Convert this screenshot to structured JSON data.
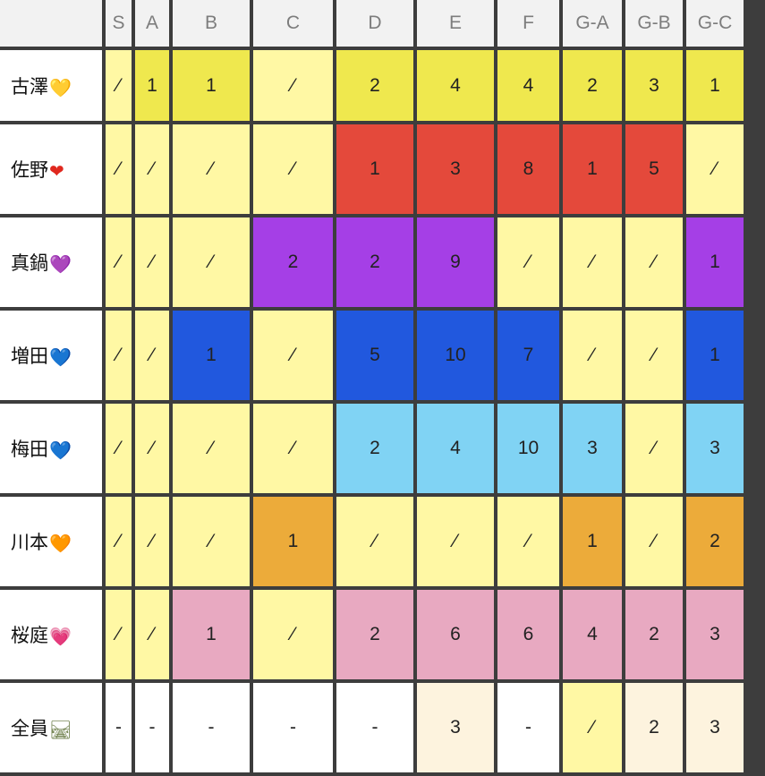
{
  "headers": [
    "S",
    "A",
    "B",
    "C",
    "D",
    "E",
    "F",
    "G-A",
    "G-B",
    "G-C"
  ],
  "rows": [
    {
      "name": "古澤",
      "icon": "yellow-heart-icon",
      "glyph": "💛",
      "glyph_color": "#f5c518",
      "cells": [
        {
          "v": "⁄",
          "c": "pale"
        },
        {
          "v": "1",
          "c": "yellow"
        },
        {
          "v": "1",
          "c": "yellow"
        },
        {
          "v": "⁄",
          "c": "pale"
        },
        {
          "v": "2",
          "c": "yellow"
        },
        {
          "v": "4",
          "c": "yellow"
        },
        {
          "v": "4",
          "c": "yellow"
        },
        {
          "v": "2",
          "c": "yellow"
        },
        {
          "v": "3",
          "c": "yellow"
        },
        {
          "v": "1",
          "c": "yellow"
        }
      ]
    },
    {
      "name": "佐野",
      "icon": "red-heart-icon",
      "glyph": "❤",
      "glyph_color": "#e0281e",
      "cells": [
        {
          "v": "⁄",
          "c": "pale"
        },
        {
          "v": "⁄",
          "c": "pale"
        },
        {
          "v": "⁄",
          "c": "pale"
        },
        {
          "v": "⁄",
          "c": "pale"
        },
        {
          "v": "1",
          "c": "red"
        },
        {
          "v": "3",
          "c": "red"
        },
        {
          "v": "8",
          "c": "red"
        },
        {
          "v": "1",
          "c": "red"
        },
        {
          "v": "5",
          "c": "red"
        },
        {
          "v": "⁄",
          "c": "pale"
        }
      ]
    },
    {
      "name": "真鍋",
      "icon": "purple-heart-icon",
      "glyph": "💜",
      "glyph_color": "#a33be0",
      "cells": [
        {
          "v": "⁄",
          "c": "pale"
        },
        {
          "v": "⁄",
          "c": "pale"
        },
        {
          "v": "⁄",
          "c": "pale"
        },
        {
          "v": "2",
          "c": "purple"
        },
        {
          "v": "2",
          "c": "purple"
        },
        {
          "v": "9",
          "c": "purple"
        },
        {
          "v": "⁄",
          "c": "pale"
        },
        {
          "v": "⁄",
          "c": "pale"
        },
        {
          "v": "⁄",
          "c": "pale"
        },
        {
          "v": "1",
          "c": "purple"
        }
      ]
    },
    {
      "name": "増田",
      "icon": "blue-heart-icon",
      "glyph": "💙",
      "glyph_color": "#2a6ee8",
      "cells": [
        {
          "v": "⁄",
          "c": "pale"
        },
        {
          "v": "⁄",
          "c": "pale"
        },
        {
          "v": "1",
          "c": "blue"
        },
        {
          "v": "⁄",
          "c": "pale"
        },
        {
          "v": "5",
          "c": "blue"
        },
        {
          "v": "10",
          "c": "blue"
        },
        {
          "v": "7",
          "c": "blue"
        },
        {
          "v": "⁄",
          "c": "pale"
        },
        {
          "v": "⁄",
          "c": "pale"
        },
        {
          "v": "1",
          "c": "blue"
        }
      ]
    },
    {
      "name": "梅田",
      "icon": "light-blue-heart-icon",
      "glyph": "💙",
      "glyph_color": "#7fd0f2",
      "cells": [
        {
          "v": "⁄",
          "c": "pale"
        },
        {
          "v": "⁄",
          "c": "pale"
        },
        {
          "v": "⁄",
          "c": "pale"
        },
        {
          "v": "⁄",
          "c": "pale"
        },
        {
          "v": "2",
          "c": "sky"
        },
        {
          "v": "4",
          "c": "sky"
        },
        {
          "v": "10",
          "c": "sky"
        },
        {
          "v": "3",
          "c": "sky"
        },
        {
          "v": "⁄",
          "c": "pale"
        },
        {
          "v": "3",
          "c": "sky"
        }
      ]
    },
    {
      "name": "川本",
      "icon": "orange-heart-icon",
      "glyph": "🧡",
      "glyph_color": "#f0922a",
      "cells": [
        {
          "v": "⁄",
          "c": "pale"
        },
        {
          "v": "⁄",
          "c": "pale"
        },
        {
          "v": "⁄",
          "c": "pale"
        },
        {
          "v": "1",
          "c": "orange"
        },
        {
          "v": "⁄",
          "c": "pale"
        },
        {
          "v": "⁄",
          "c": "pale"
        },
        {
          "v": "⁄",
          "c": "pale"
        },
        {
          "v": "1",
          "c": "orange"
        },
        {
          "v": "⁄",
          "c": "pale"
        },
        {
          "v": "2",
          "c": "orange"
        }
      ]
    },
    {
      "name": "桜庭",
      "icon": "pink-heart-icon",
      "glyph": "💗",
      "glyph_color": "#e846a8",
      "cells": [
        {
          "v": "⁄",
          "c": "pale"
        },
        {
          "v": "⁄",
          "c": "pale"
        },
        {
          "v": "1",
          "c": "pink"
        },
        {
          "v": "⁄",
          "c": "pale"
        },
        {
          "v": "2",
          "c": "pink"
        },
        {
          "v": "6",
          "c": "pink"
        },
        {
          "v": "6",
          "c": "pink"
        },
        {
          "v": "4",
          "c": "pink"
        },
        {
          "v": "2",
          "c": "pink"
        },
        {
          "v": "3",
          "c": "pink"
        }
      ]
    },
    {
      "name": "全員",
      "icon": "railway-track-icon",
      "glyph": "🛤",
      "glyph_color": "#7a8a5a",
      "cells": [
        {
          "v": "-",
          "c": "white"
        },
        {
          "v": "-",
          "c": "white"
        },
        {
          "v": "-",
          "c": "white"
        },
        {
          "v": "-",
          "c": "white"
        },
        {
          "v": "-",
          "c": "white"
        },
        {
          "v": "3",
          "c": "cream"
        },
        {
          "v": "-",
          "c": "white"
        },
        {
          "v": "⁄",
          "c": "pale"
        },
        {
          "v": "2",
          "c": "cream"
        },
        {
          "v": "3",
          "c": "cream"
        }
      ]
    }
  ]
}
